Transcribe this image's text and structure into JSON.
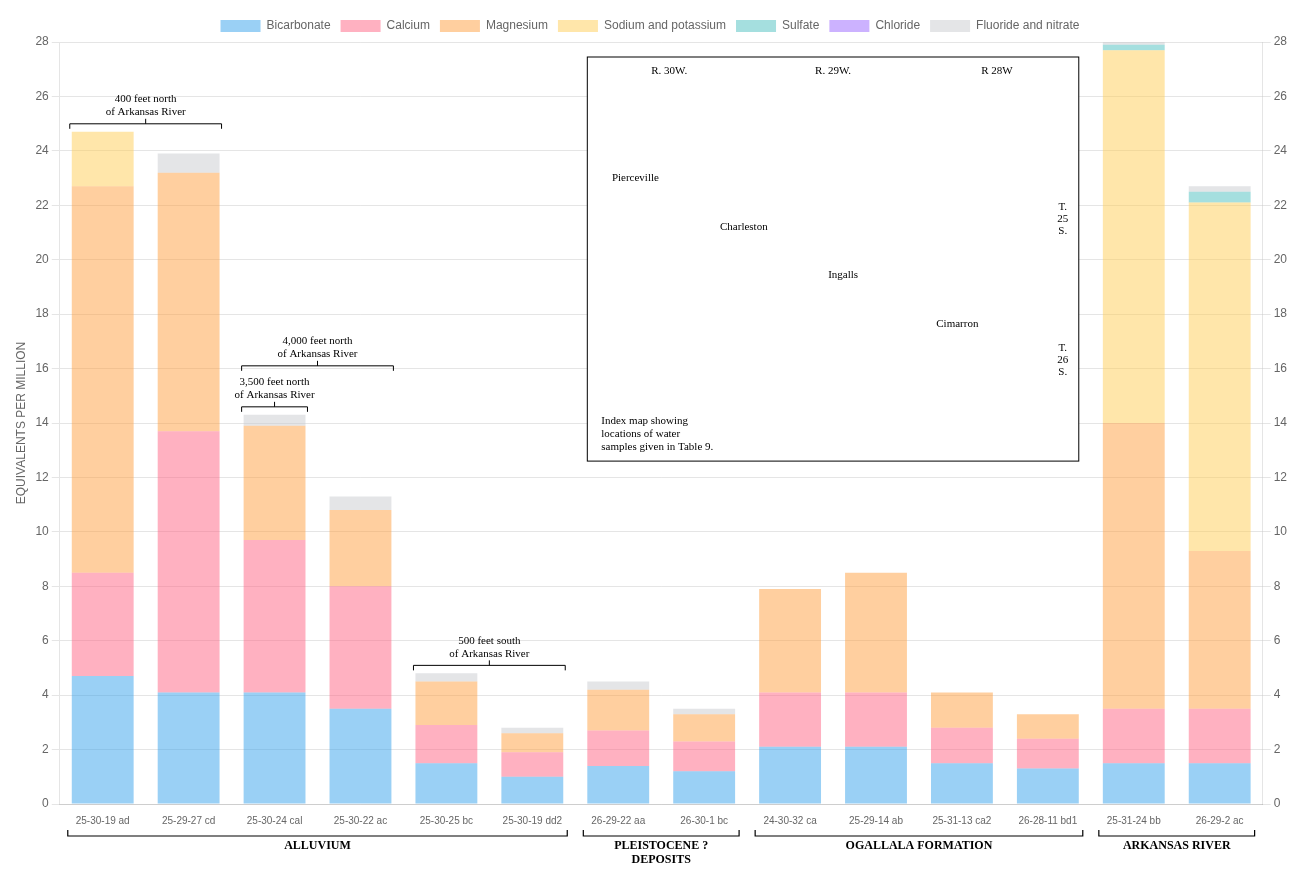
{
  "chart_data": {
    "type": "bar",
    "stacked": true,
    "ylabel": "EQUIVALENTS PER MILLION",
    "categories": [
      "25-30-19 ad",
      "25-29-27 cd",
      "25-30-24 cal",
      "25-30-22 ac",
      "25-30-25 bc",
      "25-30-19 dd2",
      "26-29-22 aa",
      "26-30-1 bc",
      "24-30-32 ca",
      "25-29-14 ab",
      "25-31-13 ca2",
      "26-28-11 bd1",
      "25-31-24 bb",
      "26-29-2 ac"
    ],
    "series": [
      {
        "name": "Bicarbonate",
        "values": [
          4.7,
          4.1,
          4.1,
          3.5,
          1.5,
          1.0,
          1.4,
          1.2,
          2.1,
          2.1,
          1.5,
          1.3,
          1.5,
          1.5
        ]
      },
      {
        "name": "Calcium",
        "values": [
          3.8,
          9.6,
          5.6,
          4.5,
          1.4,
          0.9,
          1.3,
          1.1,
          2.0,
          2.0,
          1.3,
          1.1,
          2.0,
          2.0
        ]
      },
      {
        "name": "Magnesium",
        "values": [
          14.2,
          9.5,
          4.2,
          2.8,
          1.6,
          0.7,
          1.5,
          1.0,
          3.8,
          4.4,
          1.3,
          0.9,
          10.5,
          5.8
        ]
      },
      {
        "name": "Sodium and potassium",
        "values": [
          2.0,
          0.0,
          0.0,
          0.0,
          0.0,
          0.0,
          0.0,
          0.0,
          0.0,
          0.0,
          0.0,
          0.0,
          13.7,
          12.8
        ]
      },
      {
        "name": "Sulfate",
        "values": [
          0.0,
          0.0,
          0.0,
          0.0,
          0.0,
          0.0,
          0.0,
          0.0,
          0.0,
          0.0,
          0.0,
          0.0,
          0.2,
          0.4
        ]
      },
      {
        "name": "Chloride",
        "values": [
          0.0,
          0.0,
          0.0,
          0.0,
          0.0,
          0.0,
          0.0,
          0.0,
          0.0,
          0.0,
          0.0,
          0.0,
          0.0,
          0.0
        ]
      },
      {
        "name": "Fluoride and nitrate",
        "values": [
          0.0,
          0.7,
          0.4,
          0.5,
          0.3,
          0.2,
          0.3,
          0.2,
          0.0,
          0.0,
          0.0,
          0.0,
          0.1,
          0.2
        ]
      }
    ],
    "ylim": [
      0,
      28
    ],
    "yticks": [
      0,
      2,
      4,
      6,
      8,
      10,
      12,
      14,
      16,
      18,
      20,
      22,
      24,
      26,
      28
    ],
    "y2lim": [
      0,
      28
    ],
    "y2ticks": [
      0,
      2,
      4,
      6,
      8,
      10,
      12,
      14,
      16,
      18,
      20,
      22,
      24,
      26,
      28
    ],
    "grid": true,
    "legend": "top",
    "groups": [
      {
        "label": "ALLUVIUM",
        "from": "25-30-19 ad",
        "to": "25-30-19 dd2"
      },
      {
        "label": "PLEISTOCENE ?\nDEPOSITS",
        "from": "26-29-22 aa",
        "to": "26-30-1 bc"
      },
      {
        "label": "OGALLALA FORMATION",
        "from": "24-30-32 ca",
        "to": "26-28-11 bd1"
      },
      {
        "label": "ARKANSAS RIVER",
        "from": "25-31-24 bb",
        "to": "26-29-2 ac"
      }
    ],
    "annotations": [
      {
        "text": "400 feet north\nof Arkansas River",
        "from": "25-30-19 ad",
        "to": "25-29-27 cd"
      },
      {
        "text": "3,500 feet north\nof Arkansas River",
        "from": "25-30-24 cal",
        "to": "25-30-24 cal"
      },
      {
        "text": "4,000 feet north\nof Arkansas River",
        "from": "25-30-24 cal",
        "to": "25-30-22 ac"
      },
      {
        "text": "500 feet south\nof Arkansas River",
        "from": "25-30-25 bc",
        "to": "25-30-19 dd2"
      }
    ],
    "inset": {
      "ranges": [
        "R. 30W.",
        "R. 29W.",
        "R 28W"
      ],
      "townships": [
        [
          "T.",
          "25",
          "S."
        ],
        [
          "T.",
          "26",
          "S."
        ]
      ],
      "places": [
        "Pierceville",
        "Charleston",
        "Ingalls",
        "Cimarron"
      ],
      "caption": [
        "Index map showing",
        "locations of water",
        "samples given in Table 9."
      ]
    }
  }
}
